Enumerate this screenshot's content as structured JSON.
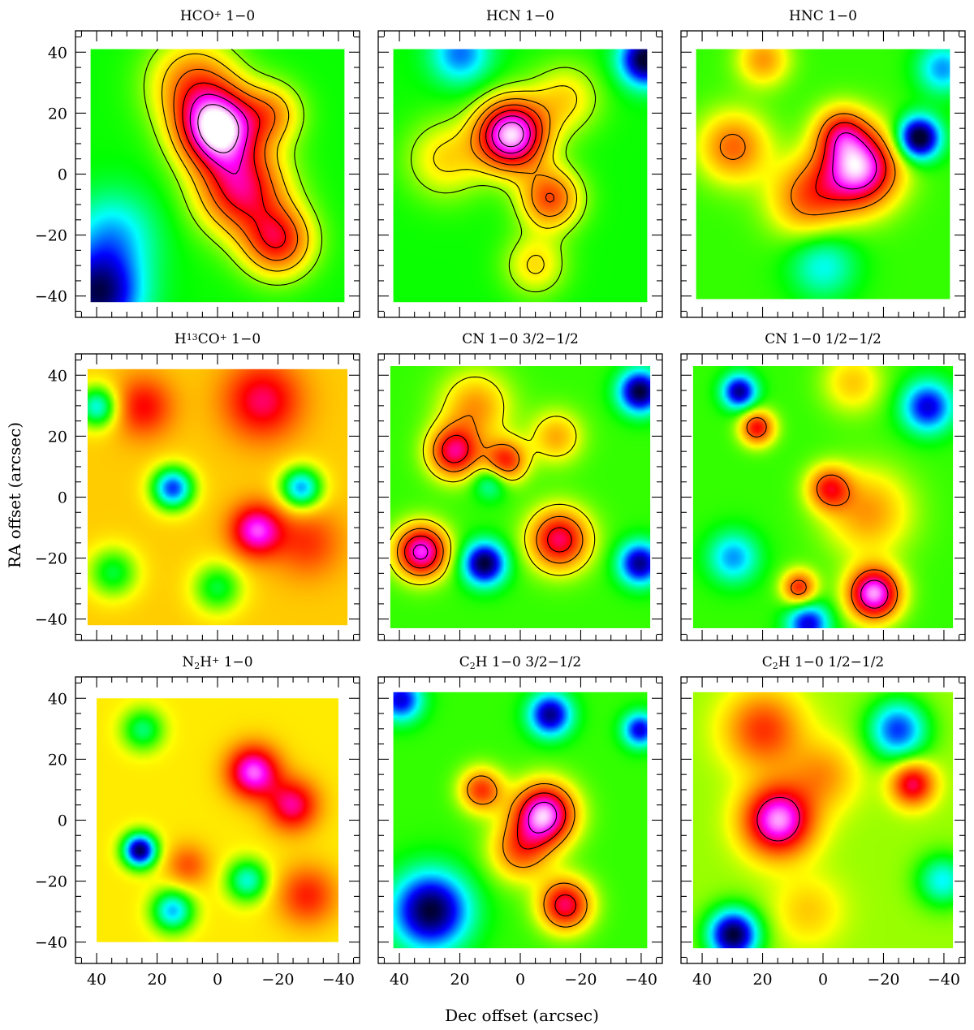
{
  "figure": {
    "x_axis_label": "Dec offset (arcsec)",
    "y_axis_label": "RA offset (arcsec)"
  },
  "chart_data": [
    {
      "type": "heatmap",
      "title": "HCO⁺ 1−0",
      "title_parts": {
        "pre": "HCO",
        "sup": "+",
        "post": " 1−0"
      },
      "xlim": [
        47,
        -47
      ],
      "ylim": [
        -47,
        47
      ],
      "x_ticks": [
        40,
        20,
        0,
        -20,
        -40
      ],
      "y_ticks": [
        -40,
        -20,
        0,
        20,
        40
      ],
      "x_ticklabels": [
        "",
        "",
        "",
        "",
        ""
      ],
      "y_ticklabels": [
        "−40",
        "−20",
        "0",
        "20",
        "40"
      ],
      "extent": {
        "x": [
          42,
          -42
        ],
        "y": [
          -42,
          41
        ]
      },
      "colormap": [
        "#000033",
        "#0000ff",
        "#00ffff",
        "#00ff00",
        "#ffff00",
        "#ff8000",
        "#ff0000",
        "#ff00ff",
        "#ffffff"
      ],
      "background_level": 0.38,
      "contours": true,
      "contour_levels": [
        0.45,
        0.55,
        0.65,
        0.75,
        0.85,
        0.95
      ],
      "blobs": [
        {
          "x": 0,
          "y": 15,
          "sigma": 9,
          "amp": 0.6
        },
        {
          "x": -8,
          "y": -5,
          "sigma": 10,
          "amp": 0.4
        },
        {
          "x": -20,
          "y": -22,
          "sigma": 8,
          "amp": 0.35
        },
        {
          "x": 8,
          "y": 30,
          "sigma": 10,
          "amp": 0.25
        },
        {
          "x": -18,
          "y": 20,
          "sigma": 7,
          "amp": 0.2
        },
        {
          "x": 40,
          "y": -40,
          "sigma": 10,
          "amp": -0.35
        },
        {
          "x": 35,
          "y": -20,
          "sigma": 10,
          "amp": -0.15
        }
      ]
    },
    {
      "type": "heatmap",
      "title": "HCN 1−0",
      "title_parts": {
        "pre": "HCN 1−0",
        "sup": "",
        "post": ""
      },
      "xlim": [
        47,
        -47
      ],
      "ylim": [
        -47,
        47
      ],
      "x_ticks": [
        40,
        20,
        0,
        -20,
        -40
      ],
      "y_ticks": [
        -40,
        -20,
        0,
        20,
        40
      ],
      "x_ticklabels": [
        "",
        "",
        "",
        "",
        ""
      ],
      "y_ticklabels": [
        "",
        "",
        "",
        "",
        ""
      ],
      "extent": {
        "x": [
          42,
          -42
        ],
        "y": [
          -42,
          41
        ]
      },
      "colormap": [
        "#000033",
        "#0000ff",
        "#00ffff",
        "#00ff00",
        "#ffff00",
        "#ff8000",
        "#ff0000",
        "#ff00ff",
        "#ffffff"
      ],
      "background_level": 0.38,
      "contours": true,
      "contour_levels": [
        0.45,
        0.52,
        0.6,
        0.68,
        0.76,
        0.84,
        0.92
      ],
      "blobs": [
        {
          "x": 3,
          "y": 13,
          "sigma": 8,
          "amp": 0.6
        },
        {
          "x": -10,
          "y": -8,
          "sigma": 7,
          "amp": 0.3
        },
        {
          "x": 25,
          "y": 5,
          "sigma": 9,
          "amp": 0.15
        },
        {
          "x": -5,
          "y": -30,
          "sigma": 7,
          "amp": 0.15
        },
        {
          "x": -15,
          "y": 25,
          "sigma": 8,
          "amp": 0.15
        },
        {
          "x": -42,
          "y": 38,
          "sigma": 6,
          "amp": -0.4
        },
        {
          "x": 20,
          "y": 40,
          "sigma": 7,
          "amp": -0.2
        }
      ]
    },
    {
      "type": "heatmap",
      "title": "HNC 1−0",
      "title_parts": {
        "pre": "HNC 1−0",
        "sup": "",
        "post": ""
      },
      "xlim": [
        47,
        -47
      ],
      "ylim": [
        -47,
        47
      ],
      "x_ticks": [
        40,
        20,
        0,
        -20,
        -40
      ],
      "y_ticks": [
        -40,
        -20,
        0,
        20,
        40
      ],
      "x_ticklabels": [
        "",
        "",
        "",
        "",
        ""
      ],
      "y_ticklabels": [
        "",
        "",
        "",
        "",
        ""
      ],
      "extent": {
        "x": [
          42,
          -42
        ],
        "y": [
          -41,
          41
        ]
      },
      "colormap": [
        "#000033",
        "#0000ff",
        "#00ffff",
        "#00ff00",
        "#ffff00",
        "#ff8000",
        "#ff0000",
        "#ff00ff",
        "#ffffff"
      ],
      "background_level": 0.4,
      "contours": true,
      "contour_levels": [
        0.62,
        0.74,
        0.86
      ],
      "blobs": [
        {
          "x": -12,
          "y": 2,
          "sigma": 9,
          "amp": 0.55
        },
        {
          "x": -6,
          "y": 14,
          "sigma": 6,
          "amp": 0.25
        },
        {
          "x": 5,
          "y": -8,
          "sigma": 9,
          "amp": 0.25
        },
        {
          "x": 30,
          "y": 9,
          "sigma": 8,
          "amp": 0.25
        },
        {
          "x": 20,
          "y": 38,
          "sigma": 6,
          "amp": 0.2
        },
        {
          "x": -32,
          "y": 12,
          "sigma": 5,
          "amp": -0.45
        },
        {
          "x": 0,
          "y": -30,
          "sigma": 8,
          "amp": -0.15
        },
        {
          "x": -40,
          "y": 35,
          "sigma": 6,
          "amp": -0.2
        }
      ]
    },
    {
      "type": "heatmap",
      "title": "H¹³CO⁺ 1−0",
      "title_parts": {
        "pre": "H",
        "sup": "13",
        "post": "CO",
        "sup2": "+",
        "post2": " 1−0"
      },
      "xlim": [
        47,
        -47
      ],
      "ylim": [
        -47,
        47
      ],
      "x_ticks": [
        40,
        20,
        0,
        -20,
        -40
      ],
      "y_ticks": [
        -40,
        -20,
        0,
        20,
        40
      ],
      "x_ticklabels": [
        "",
        "",
        "",
        "",
        ""
      ],
      "y_ticklabels": [
        "−40",
        "−20",
        "0",
        "20",
        "40"
      ],
      "extent": {
        "x": [
          43,
          -43
        ],
        "y": [
          -42,
          42
        ]
      },
      "colormap": [
        "#000033",
        "#0000ff",
        "#00ffff",
        "#00ff00",
        "#ffff00",
        "#ff8000",
        "#ff0000",
        "#ff00ff",
        "#ffffff"
      ],
      "background_level": 0.55,
      "contours": false,
      "contour_levels": [],
      "blobs": [
        {
          "x": -13,
          "y": -11,
          "sigma": 6,
          "amp": 0.35
        },
        {
          "x": -15,
          "y": 32,
          "sigma": 9,
          "amp": 0.25
        },
        {
          "x": 25,
          "y": 30,
          "sigma": 7,
          "amp": 0.2
        },
        {
          "x": -30,
          "y": -15,
          "sigma": 8,
          "amp": 0.15
        },
        {
          "x": 15,
          "y": 3,
          "sigma": 5,
          "amp": -0.4
        },
        {
          "x": -28,
          "y": 3,
          "sigma": 5,
          "amp": -0.35
        },
        {
          "x": 0,
          "y": -30,
          "sigma": 6,
          "amp": -0.2
        },
        {
          "x": 40,
          "y": 30,
          "sigma": 5,
          "amp": -0.3
        },
        {
          "x": 35,
          "y": -25,
          "sigma": 6,
          "amp": -0.2
        }
      ]
    },
    {
      "type": "heatmap",
      "title": "CN 1−0 3/2−1/2",
      "title_parts": {
        "pre": "CN 1−0 3/2−1/2",
        "sup": "",
        "post": ""
      },
      "xlim": [
        47,
        -47
      ],
      "ylim": [
        -47,
        47
      ],
      "x_ticks": [
        40,
        20,
        0,
        -20,
        -40
      ],
      "y_ticks": [
        -40,
        -20,
        0,
        20,
        40
      ],
      "x_ticklabels": [
        "",
        "",
        "",
        "",
        ""
      ],
      "y_ticklabels": [
        "",
        "",
        "",
        "",
        ""
      ],
      "extent": {
        "x": [
          43,
          -43
        ],
        "y": [
          -43,
          43
        ]
      },
      "colormap": [
        "#000033",
        "#0000ff",
        "#00ffff",
        "#00ff00",
        "#ffff00",
        "#ff8000",
        "#ff0000",
        "#ff00ff",
        "#ffffff"
      ],
      "background_level": 0.4,
      "contours": true,
      "contour_levels": [
        0.5,
        0.62,
        0.74,
        0.86
      ],
      "blobs": [
        {
          "x": 33,
          "y": -18,
          "sigma": 6,
          "amp": 0.5
        },
        {
          "x": 22,
          "y": 15,
          "sigma": 6,
          "amp": 0.4
        },
        {
          "x": -13,
          "y": -14,
          "sigma": 7,
          "amp": 0.4
        },
        {
          "x": 5,
          "y": 12,
          "sigma": 5,
          "amp": 0.32
        },
        {
          "x": 15,
          "y": 30,
          "sigma": 8,
          "amp": 0.2
        },
        {
          "x": -12,
          "y": 20,
          "sigma": 6,
          "amp": 0.18
        },
        {
          "x": 10,
          "y": 5,
          "sigma": 4,
          "amp": -0.15
        },
        {
          "x": 12,
          "y": -22,
          "sigma": 5,
          "amp": -0.4
        },
        {
          "x": -40,
          "y": 35,
          "sigma": 5,
          "amp": -0.4
        },
        {
          "x": -40,
          "y": -22,
          "sigma": 5,
          "amp": -0.35
        }
      ]
    },
    {
      "type": "heatmap",
      "title": "CN 1−0 1/2−1/2",
      "title_parts": {
        "pre": "CN 1−0 1/2−1/2",
        "sup": "",
        "post": ""
      },
      "xlim": [
        47,
        -47
      ],
      "ylim": [
        -47,
        47
      ],
      "x_ticks": [
        40,
        20,
        0,
        -20,
        -40
      ],
      "y_ticks": [
        -40,
        -20,
        0,
        20,
        40
      ],
      "x_ticklabels": [
        "",
        "",
        "",
        "",
        ""
      ],
      "y_ticklabels": [
        "",
        "",
        "",
        "",
        ""
      ],
      "extent": {
        "x": [
          43,
          -43
        ],
        "y": [
          -43,
          43
        ]
      },
      "colormap": [
        "#000033",
        "#0000ff",
        "#00ffff",
        "#00ff00",
        "#ffff00",
        "#ff8000",
        "#ff0000",
        "#ff00ff",
        "#ffffff"
      ],
      "background_level": 0.4,
      "contours": true,
      "contour_levels": [
        0.65,
        0.82
      ],
      "blobs": [
        {
          "x": -17,
          "y": -32,
          "sigma": 6,
          "amp": 0.55
        },
        {
          "x": 22,
          "y": 23,
          "sigma": 4,
          "amp": 0.35
        },
        {
          "x": 8,
          "y": -30,
          "sigma": 4,
          "amp": 0.32
        },
        {
          "x": -2,
          "y": 3,
          "sigma": 5,
          "amp": 0.3
        },
        {
          "x": -15,
          "y": -5,
          "sigma": 10,
          "amp": 0.2
        },
        {
          "x": -10,
          "y": 38,
          "sigma": 7,
          "amp": 0.15
        },
        {
          "x": 28,
          "y": 35,
          "sigma": 4,
          "amp": -0.35
        },
        {
          "x": -35,
          "y": 30,
          "sigma": 6,
          "amp": -0.3
        },
        {
          "x": 30,
          "y": -20,
          "sigma": 6,
          "amp": -0.2
        },
        {
          "x": 5,
          "y": -42,
          "sigma": 5,
          "amp": -0.3
        }
      ]
    },
    {
      "type": "heatmap",
      "title": "N₂H⁺ 1−0",
      "title_parts": {
        "pre": "N",
        "sub": "2",
        "post": "H",
        "sup2": "+",
        "post2": " 1−0"
      },
      "xlim": [
        47,
        -47
      ],
      "ylim": [
        -47,
        47
      ],
      "x_ticks": [
        40,
        20,
        0,
        -20,
        -40
      ],
      "y_ticks": [
        -40,
        -20,
        0,
        20,
        40
      ],
      "x_ticklabels": [
        "40",
        "20",
        "0",
        "−20",
        "−40"
      ],
      "y_ticklabels": [
        "−40",
        "−20",
        "0",
        "20",
        "40"
      ],
      "extent": {
        "x": [
          40,
          -40
        ],
        "y": [
          -40,
          40
        ]
      },
      "colormap": [
        "#000033",
        "#0000ff",
        "#00ffff",
        "#00ff00",
        "#ffff00",
        "#ff8000",
        "#ff0000",
        "#ff00ff",
        "#ffffff"
      ],
      "background_level": 0.52,
      "contours": false,
      "contour_levels": [],
      "blobs": [
        {
          "x": -12,
          "y": 16,
          "sigma": 6,
          "amp": 0.4
        },
        {
          "x": -25,
          "y": 5,
          "sigma": 6,
          "amp": 0.3
        },
        {
          "x": 10,
          "y": -15,
          "sigma": 5,
          "amp": 0.15
        },
        {
          "x": -30,
          "y": -25,
          "sigma": 7,
          "amp": 0.2
        },
        {
          "x": 26,
          "y": -10,
          "sigma": 4,
          "amp": -0.5
        },
        {
          "x": 25,
          "y": 30,
          "sigma": 5,
          "amp": -0.2
        },
        {
          "x": 15,
          "y": -30,
          "sigma": 5,
          "amp": -0.3
        },
        {
          "x": -10,
          "y": -20,
          "sigma": 5,
          "amp": -0.25
        }
      ]
    },
    {
      "type": "heatmap",
      "title": "C₂H 1−0 3/2−1/2",
      "title_parts": {
        "pre": "C",
        "sub": "2",
        "post": "H 1−0 3/2−1/2"
      },
      "xlim": [
        47,
        -47
      ],
      "ylim": [
        -47,
        47
      ],
      "x_ticks": [
        40,
        20,
        0,
        -20,
        -40
      ],
      "y_ticks": [
        -40,
        -20,
        0,
        20,
        40
      ],
      "x_ticklabels": [
        "40",
        "20",
        "0",
        "−20",
        "−40"
      ],
      "y_ticklabels": [
        "",
        "",
        "",
        "",
        ""
      ],
      "extent": {
        "x": [
          42,
          -42
        ],
        "y": [
          -42,
          42
        ]
      },
      "colormap": [
        "#000033",
        "#0000ff",
        "#00ffff",
        "#00ff00",
        "#ffff00",
        "#ff8000",
        "#ff0000",
        "#ff00ff",
        "#ffffff"
      ],
      "background_level": 0.4,
      "contours": true,
      "contour_levels": [
        0.6,
        0.74,
        0.88
      ],
      "blobs": [
        {
          "x": -8,
          "y": 2,
          "sigma": 7,
          "amp": 0.55
        },
        {
          "x": -15,
          "y": -28,
          "sigma": 6,
          "amp": 0.4
        },
        {
          "x": 13,
          "y": 10,
          "sigma": 5,
          "amp": 0.3
        },
        {
          "x": 0,
          "y": -10,
          "sigma": 7,
          "amp": 0.25
        },
        {
          "x": 30,
          "y": -30,
          "sigma": 9,
          "amp": -0.4
        },
        {
          "x": -10,
          "y": 35,
          "sigma": 5,
          "amp": -0.35
        },
        {
          "x": 40,
          "y": 40,
          "sigma": 5,
          "amp": -0.3
        },
        {
          "x": -40,
          "y": 30,
          "sigma": 4,
          "amp": -0.3
        }
      ]
    },
    {
      "type": "heatmap",
      "title": "C₂H 1−0 1/2−1/2",
      "title_parts": {
        "pre": "C",
        "sub": "2",
        "post": "H 1−0 1/2−1/2"
      },
      "xlim": [
        47,
        -47
      ],
      "ylim": [
        -47,
        47
      ],
      "x_ticks": [
        40,
        20,
        0,
        -20,
        -40
      ],
      "y_ticks": [
        -40,
        -20,
        0,
        20,
        40
      ],
      "x_ticklabels": [
        "40",
        "20",
        "0",
        "−20",
        "−40"
      ],
      "y_ticklabels": [
        "",
        "",
        "",
        "",
        ""
      ],
      "extent": {
        "x": [
          43,
          -43
        ],
        "y": [
          -42,
          42
        ]
      },
      "colormap": [
        "#000033",
        "#0000ff",
        "#00ffff",
        "#00ff00",
        "#ffff00",
        "#ff8000",
        "#ff0000",
        "#ff00ff",
        "#ffffff"
      ],
      "background_level": 0.45,
      "contours": true,
      "contour_levels": [
        0.8
      ],
      "blobs": [
        {
          "x": 15,
          "y": 0,
          "sigma": 8,
          "amp": 0.5
        },
        {
          "x": -30,
          "y": 12,
          "sigma": 5,
          "amp": 0.35
        },
        {
          "x": 20,
          "y": 30,
          "sigma": 9,
          "amp": 0.25
        },
        {
          "x": 0,
          "y": 15,
          "sigma": 8,
          "amp": 0.15
        },
        {
          "x": 5,
          "y": -30,
          "sigma": 8,
          "amp": 0.1
        },
        {
          "x": 30,
          "y": -38,
          "sigma": 6,
          "amp": -0.45
        },
        {
          "x": -25,
          "y": 30,
          "sigma": 7,
          "amp": -0.3
        },
        {
          "x": -40,
          "y": -20,
          "sigma": 6,
          "amp": -0.2
        }
      ]
    }
  ]
}
